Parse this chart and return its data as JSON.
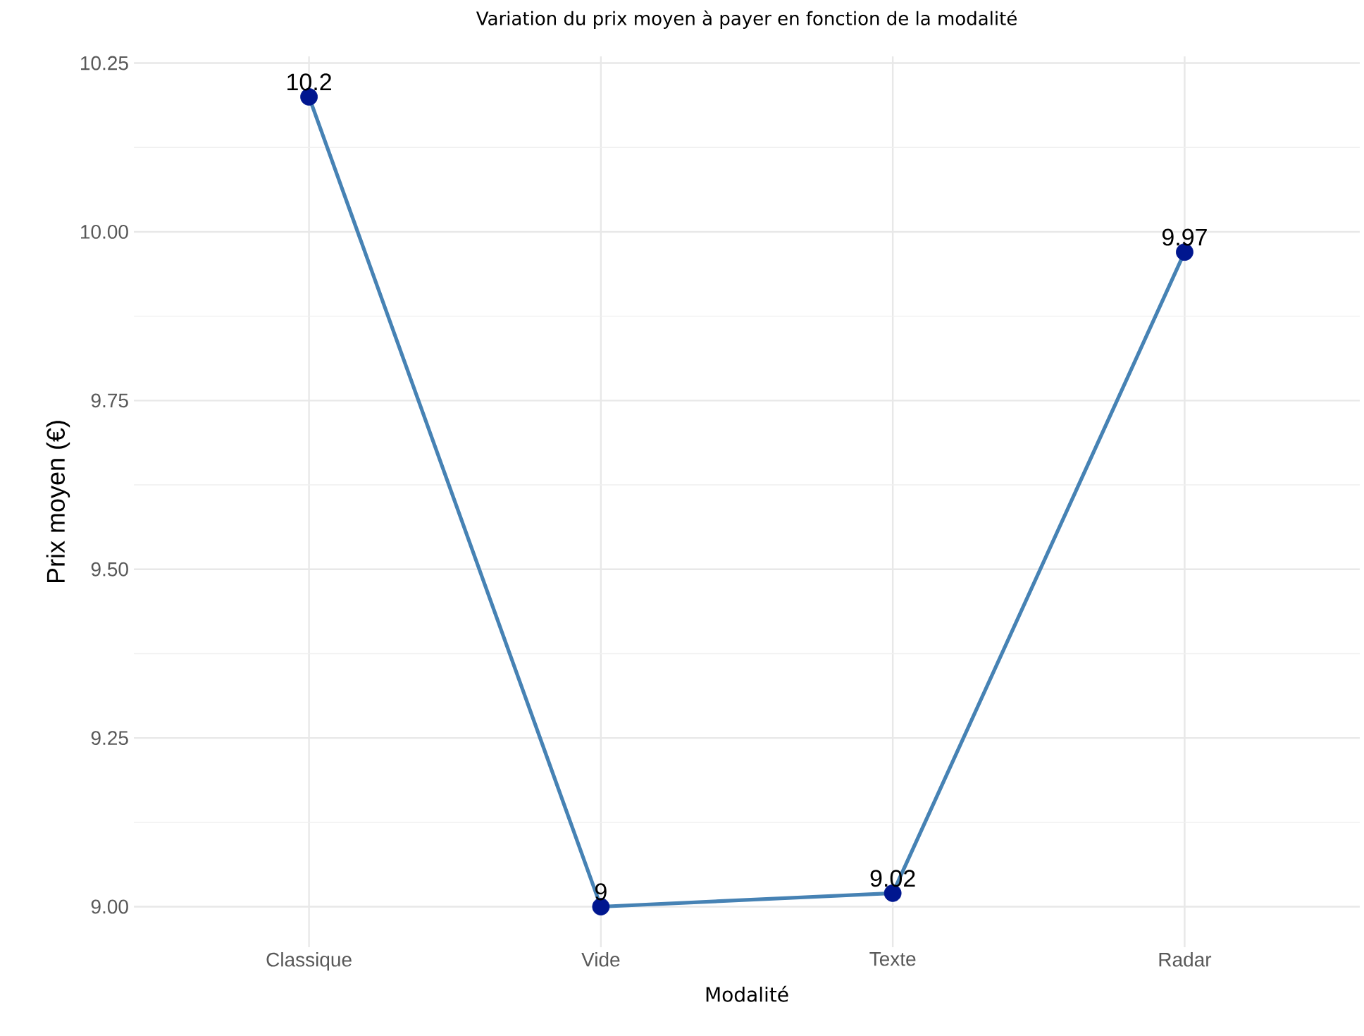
{
  "chart_data": {
    "type": "line",
    "title": "Variation du prix moyen à payer en fonction de la modalité",
    "xlabel": "Modalité",
    "ylabel": "Prix moyen (€)",
    "categories": [
      "Classique",
      "Vide",
      "Texte",
      "Radar"
    ],
    "series": [
      {
        "color": "#4682b4",
        "colors": [
          "#00168f",
          "#00168f",
          "#00168f",
          "#00168f"
        ],
        "values": [
          10.2,
          9,
          9.02,
          9.97
        ]
      }
    ],
    "ylim": [
      8.94,
      10.26
    ],
    "yticks": [
      {
        "value": 9,
        "label": "9.00"
      },
      {
        "value": 9.25,
        "label": "9.25"
      },
      {
        "value": 9.5,
        "label": "9.50"
      },
      {
        "value": 9.75,
        "label": "9.75"
      },
      {
        "value": 10,
        "label": "10.00"
      },
      {
        "value": 10.25,
        "label": "10.25"
      }
    ],
    "grid": true,
    "marker": "circle",
    "data_labels": true
  }
}
